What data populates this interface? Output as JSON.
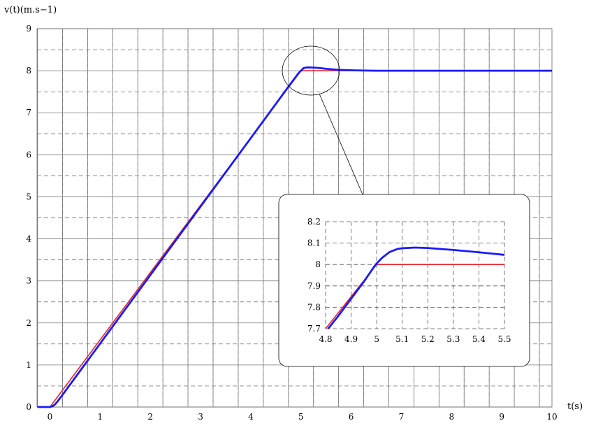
{
  "chart_data": {
    "type": "line",
    "xlabel": "t(s)",
    "ylabel": "v(t)(m.s−1)",
    "xlim": [
      -0.25,
      10
    ],
    "ylim": [
      0,
      9
    ],
    "x_ticks": [
      "0",
      "1",
      "2",
      "3",
      "4",
      "5",
      "6",
      "7",
      "8",
      "9",
      "10"
    ],
    "y_ticks": [
      "0",
      "1",
      "2",
      "3",
      "4",
      "5",
      "6",
      "7",
      "8",
      "9"
    ],
    "grid": {
      "major": true,
      "minor_dashed": true
    },
    "series": [
      {
        "color": "#e8232b",
        "x": [
          -0.25,
          0,
          5,
          10
        ],
        "y": [
          0,
          0,
          8,
          8
        ]
      },
      {
        "color": "#1a1aff",
        "x": [
          -0.25,
          0,
          0.05,
          0.1,
          0.15,
          0.2,
          0.3,
          4.8,
          4.85,
          4.9,
          4.95,
          5.0,
          5.05,
          5.1,
          5.15,
          5.2,
          5.3,
          5.4,
          5.5,
          5.75,
          6.0,
          6.5,
          7,
          8,
          9,
          10
        ],
        "y": [
          0,
          0,
          0.02,
          0.06,
          0.13,
          0.21,
          0.37,
          7.7,
          7.78,
          7.86,
          7.94,
          8.0,
          8.06,
          8.075,
          8.078,
          8.077,
          8.07,
          8.06,
          8.045,
          8.02,
          8.01,
          8.0,
          8.0,
          8.0,
          8.0,
          8.0
        ]
      }
    ],
    "inset": {
      "xlim": [
        4.8,
        5.5
      ],
      "ylim": [
        7.7,
        8.2
      ],
      "x_ticks": [
        "4.8",
        "4.9",
        "5",
        "5.1",
        "5.2",
        "5.3",
        "5.4",
        "5.5"
      ],
      "y_ticks": [
        "7.7",
        "7.8",
        "7.9",
        "8",
        "8.1",
        "8.2"
      ],
      "grid": "dashed",
      "series": [
        {
          "color": "#e8232b",
          "x": [
            4.8,
            5.0,
            5.5
          ],
          "y": [
            7.7,
            8.0,
            8.0
          ]
        },
        {
          "color": "#1a1aff",
          "x": [
            4.81,
            4.85,
            4.9,
            4.95,
            4.99,
            5.0,
            5.02,
            5.05,
            5.08,
            5.1,
            5.15,
            5.2,
            5.3,
            5.4,
            5.5
          ],
          "y": [
            7.7,
            7.76,
            7.84,
            7.92,
            7.99,
            8.005,
            8.03,
            8.058,
            8.072,
            8.076,
            8.079,
            8.077,
            8.068,
            8.057,
            8.045
          ]
        }
      ]
    }
  }
}
